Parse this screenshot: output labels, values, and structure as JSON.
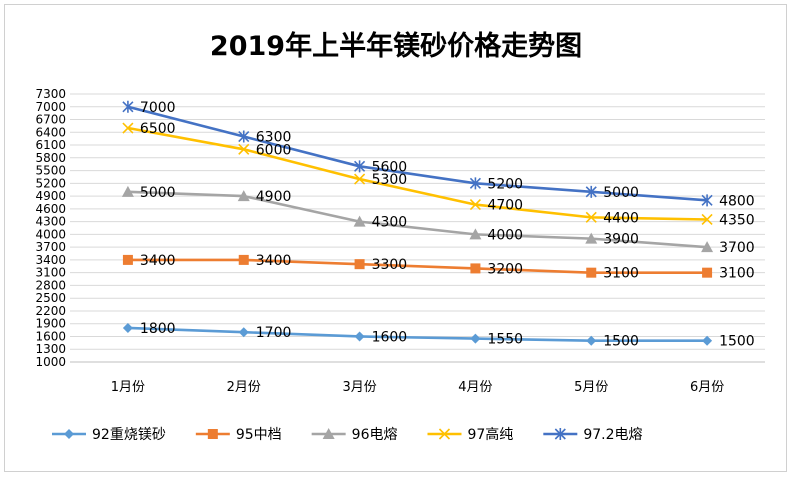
{
  "chart_data": {
    "type": "line",
    "title": "2019年上半年镁砂价格走势图",
    "xlabel": "",
    "ylabel": "",
    "ylim": [
      1000,
      7300
    ],
    "yticks": [
      1000,
      1300,
      1600,
      1900,
      2200,
      2500,
      2800,
      3100,
      3400,
      3700,
      4000,
      4300,
      4600,
      4900,
      5200,
      5500,
      5800,
      6100,
      6400,
      6700,
      7000,
      7300
    ],
    "grid": true,
    "legend_position": "bottom",
    "categories": [
      "1月份",
      "2月份",
      "3月份",
      "4月份",
      "5月份",
      "6月份"
    ],
    "series": [
      {
        "name": "92重烧镁砂",
        "color": "#5b9bd5",
        "marker": "diamond",
        "values": [
          1800,
          1700,
          1600,
          1550,
          1500,
          1500
        ]
      },
      {
        "name": "95中档",
        "color": "#ed7d31",
        "marker": "square",
        "values": [
          3400,
          3400,
          3300,
          3200,
          3100,
          3100
        ]
      },
      {
        "name": "96电熔",
        "color": "#a5a5a5",
        "marker": "triangle",
        "values": [
          5000,
          4900,
          4300,
          4000,
          3900,
          3700
        ]
      },
      {
        "name": "97高纯",
        "color": "#ffc000",
        "marker": "x",
        "values": [
          6500,
          6000,
          5300,
          4700,
          4400,
          4350
        ]
      },
      {
        "name": "97.2电熔",
        "color": "#4472c4",
        "marker": "star",
        "values": [
          7000,
          6300,
          5600,
          5200,
          5000,
          4800
        ]
      }
    ]
  }
}
